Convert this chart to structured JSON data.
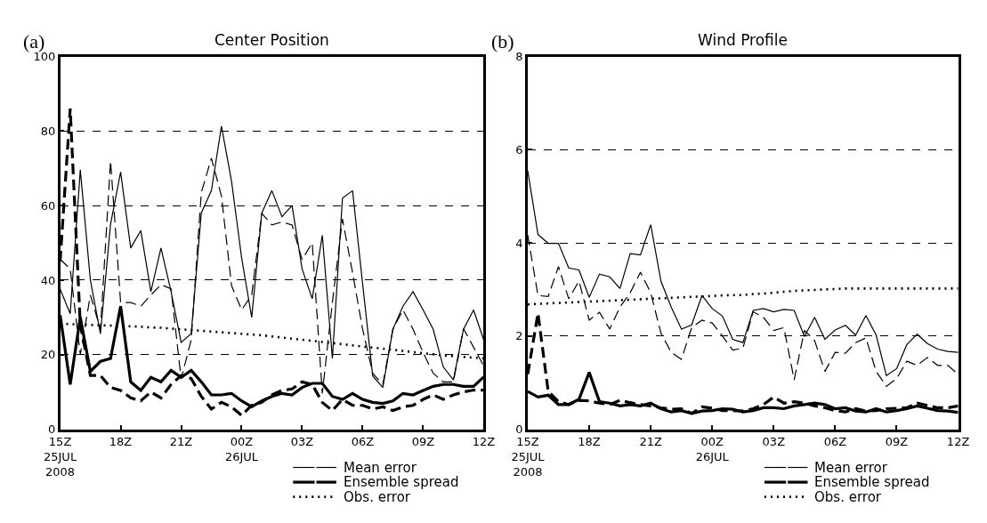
{
  "chart_data": [
    {
      "type": "line",
      "title": "Center Position",
      "annotations": [
        "(a)"
      ],
      "x": [
        "2008-07-25T15:00",
        "2008-07-25T15:30",
        "2008-07-25T16:00",
        "2008-07-25T16:30",
        "2008-07-25T17:00",
        "2008-07-25T17:30",
        "2008-07-25T18:00",
        "2008-07-25T18:30",
        "2008-07-25T19:00",
        "2008-07-25T19:30",
        "2008-07-25T20:00",
        "2008-07-25T20:30",
        "2008-07-25T21:00",
        "2008-07-25T21:30",
        "2008-07-25T22:00",
        "2008-07-25T22:30",
        "2008-07-25T23:00",
        "2008-07-25T23:30",
        "2008-07-26T00:00",
        "2008-07-26T00:30",
        "2008-07-26T01:00",
        "2008-07-26T01:30",
        "2008-07-26T02:00",
        "2008-07-26T02:30",
        "2008-07-26T03:00",
        "2008-07-26T03:30",
        "2008-07-26T04:00",
        "2008-07-26T04:30",
        "2008-07-26T05:00",
        "2008-07-26T05:30",
        "2008-07-26T06:00",
        "2008-07-26T06:30",
        "2008-07-26T07:00",
        "2008-07-26T07:30",
        "2008-07-26T08:00",
        "2008-07-26T08:30",
        "2008-07-26T09:00",
        "2008-07-26T09:30",
        "2008-07-26T10:00",
        "2008-07-26T10:30",
        "2008-07-26T11:00",
        "2008-07-26T11:30",
        "2008-07-26T12:00"
      ],
      "xlim": [
        "2008-07-25T15:00",
        "2008-07-26T12:00"
      ],
      "xticks": [
        {
          "value": "2008-07-25T15:00",
          "label": "15Z\n25JUL\n2008"
        },
        {
          "value": "2008-07-25T18:00",
          "label": "18Z"
        },
        {
          "value": "2008-07-25T21:00",
          "label": "21Z"
        },
        {
          "value": "2008-07-26T00:00",
          "label": "00Z\n26JUL"
        },
        {
          "value": "2008-07-26T03:00",
          "label": "03Z"
        },
        {
          "value": "2008-07-26T06:00",
          "label": "06Z"
        },
        {
          "value": "2008-07-26T09:00",
          "label": "09Z"
        },
        {
          "value": "2008-07-26T12:00",
          "label": "12Z"
        }
      ],
      "ylim": [
        0,
        100
      ],
      "yticks": [
        0,
        20,
        40,
        60,
        80,
        100
      ],
      "grid": "y",
      "legend": "bottom right",
      "marker": "none",
      "series": [
        {
          "name": "Mean error",
          "color": "#000000",
          "line_style": "solid",
          "values": [
            37.6,
            31,
            69.6,
            40,
            25.6,
            55,
            69,
            48.6,
            53.3,
            36.9,
            48.6,
            37,
            23.3,
            25.6,
            58,
            64,
            81.3,
            66.5,
            46,
            30,
            58,
            64,
            57,
            60,
            43,
            35,
            52,
            19,
            62,
            64,
            39,
            14.3,
            11.2,
            26.8,
            33,
            36.9,
            32,
            26.8,
            16.7,
            13.2,
            26.8,
            32,
            24
          ]
        },
        {
          "color": "#000000",
          "line_style": "dashed",
          "values": [
            45.6,
            43,
            20,
            36,
            26.8,
            72,
            34,
            34,
            33,
            36,
            38.8,
            37.7,
            13.5,
            24,
            63.5,
            72.7,
            62.6,
            38.5,
            32,
            36,
            57.9,
            54.8,
            55.6,
            54.8,
            45.5,
            50,
            9.6,
            34,
            56.4,
            42,
            26.8,
            15,
            12,
            26.8,
            32,
            26.8,
            20.6,
            15,
            12.7,
            12.7,
            27,
            22,
            17
          ]
        },
        {
          "name": "Ensemble spread",
          "color": "#000000",
          "line_style": "solid",
          "values": [
            30.6,
            12,
            30,
            15.5,
            18.2,
            19,
            33,
            12.7,
            10.4,
            13.9,
            12.7,
            15.8,
            13.9,
            15.8,
            12.7,
            9.2,
            9.2,
            9.6,
            7.6,
            6,
            7.6,
            8.8,
            9.6,
            9.2,
            11.2,
            12.3,
            12.3,
            8.8,
            8,
            9.6,
            8,
            7.2,
            6.9,
            7.6,
            9.6,
            9.2,
            10.4,
            11.5,
            12,
            12,
            11.5,
            11.5,
            14
          ]
        },
        {
          "color": "#000000",
          "line_style": "dashed",
          "values": [
            45,
            86,
            28,
            14.4,
            14.4,
            11.2,
            10.4,
            8.4,
            7.6,
            10,
            8.4,
            12,
            14.4,
            13.6,
            8.8,
            5.4,
            7.2,
            6,
            3.7,
            6.4,
            7.2,
            9.2,
            10.4,
            10.8,
            12.7,
            12,
            7.2,
            5,
            8,
            6.4,
            6.4,
            5.4,
            6,
            5,
            6,
            6.4,
            8,
            9.2,
            8,
            9.2,
            10,
            10.5,
            10.5
          ]
        },
        {
          "name": "Obs. error",
          "color": "#000000",
          "line_style": "dotted",
          "values": [
            28.3,
            28.2,
            28.1,
            28,
            27.9,
            27.8,
            27.7,
            27.6,
            27.5,
            27.3,
            27.2,
            27,
            26.8,
            26.6,
            26.4,
            26.2,
            26,
            25.8,
            25.6,
            25.4,
            25.2,
            24.9,
            24.6,
            24.3,
            24,
            23.7,
            23.4,
            23.1,
            22.8,
            22.5,
            22.2,
            21.9,
            21.6,
            21.3,
            21,
            20.7,
            20.4,
            20.1,
            19.8,
            19.6,
            19.4,
            19.2,
            19
          ]
        }
      ]
    },
    {
      "type": "line",
      "title": "Wind Profile",
      "annotations": [
        "(b)"
      ],
      "x": [
        "2008-07-25T15:00",
        "2008-07-25T15:30",
        "2008-07-25T16:00",
        "2008-07-25T16:30",
        "2008-07-25T17:00",
        "2008-07-25T17:30",
        "2008-07-25T18:00",
        "2008-07-25T18:30",
        "2008-07-25T19:00",
        "2008-07-25T19:30",
        "2008-07-25T20:00",
        "2008-07-25T20:30",
        "2008-07-25T21:00",
        "2008-07-25T21:30",
        "2008-07-25T22:00",
        "2008-07-25T22:30",
        "2008-07-25T23:00",
        "2008-07-25T23:30",
        "2008-07-26T00:00",
        "2008-07-26T00:30",
        "2008-07-26T01:00",
        "2008-07-26T01:30",
        "2008-07-26T02:00",
        "2008-07-26T02:30",
        "2008-07-26T03:00",
        "2008-07-26T03:30",
        "2008-07-26T04:00",
        "2008-07-26T04:30",
        "2008-07-26T05:00",
        "2008-07-26T05:30",
        "2008-07-26T06:00",
        "2008-07-26T06:30",
        "2008-07-26T07:00",
        "2008-07-26T07:30",
        "2008-07-26T08:00",
        "2008-07-26T08:30",
        "2008-07-26T09:00",
        "2008-07-26T09:30",
        "2008-07-26T10:00",
        "2008-07-26T10:30",
        "2008-07-26T11:00",
        "2008-07-26T11:30",
        "2008-07-26T12:00"
      ],
      "xlim": [
        "2008-07-25T15:00",
        "2008-07-26T12:00"
      ],
      "xticks": [
        {
          "value": "2008-07-25T15:00",
          "label": "15Z\n25JUL\n2008"
        },
        {
          "value": "2008-07-25T18:00",
          "label": "18Z"
        },
        {
          "value": "2008-07-25T21:00",
          "label": "21Z"
        },
        {
          "value": "2008-07-26T00:00",
          "label": "00Z\n26JUL"
        },
        {
          "value": "2008-07-26T03:00",
          "label": "03Z"
        },
        {
          "value": "2008-07-26T06:00",
          "label": "06Z"
        },
        {
          "value": "2008-07-26T09:00",
          "label": "09Z"
        },
        {
          "value": "2008-07-26T12:00",
          "label": "12Z"
        }
      ],
      "ylim": [
        0,
        8
      ],
      "yticks": [
        0,
        2,
        4,
        6,
        8
      ],
      "grid": "y",
      "legend": "bottom right",
      "marker": "none",
      "series": [
        {
          "name": "Mean error",
          "color": "#000000",
          "line_style": "solid",
          "values": [
            5.55,
            4.18,
            3.99,
            3.99,
            3.46,
            3.42,
            2.83,
            3.33,
            3.27,
            3.02,
            3.77,
            3.74,
            4.39,
            3.18,
            2.62,
            2.15,
            2.24,
            2.87,
            2.59,
            2.43,
            1.93,
            1.86,
            2.55,
            2.59,
            2.52,
            2.57,
            2.55,
            1.99,
            2.4,
            1.93,
            2.13,
            2.23,
            2.02,
            2.44,
            2.02,
            1.15,
            1.3,
            1.82,
            2.04,
            1.84,
            1.72,
            1.67,
            1.65
          ]
        },
        {
          "color": "#000000",
          "line_style": "dashed",
          "values": [
            4.17,
            2.87,
            2.85,
            3.49,
            2.8,
            3.18,
            2.34,
            2.51,
            2.15,
            2.62,
            2.93,
            3.37,
            2.93,
            2.06,
            1.65,
            1.5,
            2.18,
            2.34,
            2.28,
            2,
            1.7,
            1.74,
            2.52,
            2.4,
            2.12,
            2.18,
            1.06,
            2.12,
            1.9,
            1.24,
            1.65,
            1.63,
            1.86,
            1.96,
            1.24,
            0.92,
            1.09,
            1.46,
            1.37,
            1.54,
            1.37,
            1.37,
            1.18
          ]
        },
        {
          "name": "Ensemble spread",
          "color": "#000000",
          "line_style": "solid",
          "values": [
            0.81,
            0.69,
            0.73,
            0.53,
            0.53,
            0.64,
            1.22,
            0.59,
            0.56,
            0.5,
            0.53,
            0.5,
            0.56,
            0.44,
            0.37,
            0.4,
            0.34,
            0.39,
            0.4,
            0.44,
            0.43,
            0.37,
            0.4,
            0.46,
            0.46,
            0.44,
            0.5,
            0.53,
            0.56,
            0.53,
            0.44,
            0.46,
            0.39,
            0.37,
            0.44,
            0.37,
            0.4,
            0.44,
            0.5,
            0.45,
            0.4,
            0.39,
            0.36
          ]
        },
        {
          "color": "#000000",
          "line_style": "dashed",
          "values": [
            1.18,
            2.49,
            0.81,
            0.59,
            0.53,
            0.62,
            0.61,
            0.56,
            0.53,
            0.62,
            0.57,
            0.53,
            0.5,
            0.46,
            0.43,
            0.44,
            0.34,
            0.48,
            0.45,
            0.4,
            0.4,
            0.39,
            0.44,
            0.53,
            0.69,
            0.56,
            0.59,
            0.56,
            0.5,
            0.46,
            0.4,
            0.37,
            0.44,
            0.39,
            0.4,
            0.44,
            0.45,
            0.46,
            0.56,
            0.51,
            0.46,
            0.46,
            0.5
          ]
        },
        {
          "name": "Obs. error",
          "color": "#000000",
          "line_style": "dotted",
          "values": [
            2.68,
            2.69,
            2.7,
            2.71,
            2.72,
            2.73,
            2.74,
            2.75,
            2.76,
            2.77,
            2.78,
            2.79,
            2.8,
            2.81,
            2.82,
            2.83,
            2.84,
            2.85,
            2.86,
            2.87,
            2.88,
            2.88,
            2.9,
            2.91,
            2.93,
            2.95,
            2.97,
            2.98,
            2.99,
            3,
            3.01,
            3.02,
            3.02,
            3.02,
            3.02,
            3.02,
            3.02,
            3.02,
            3.02,
            3.02,
            3.02,
            3.02,
            3.02
          ]
        }
      ]
    }
  ]
}
